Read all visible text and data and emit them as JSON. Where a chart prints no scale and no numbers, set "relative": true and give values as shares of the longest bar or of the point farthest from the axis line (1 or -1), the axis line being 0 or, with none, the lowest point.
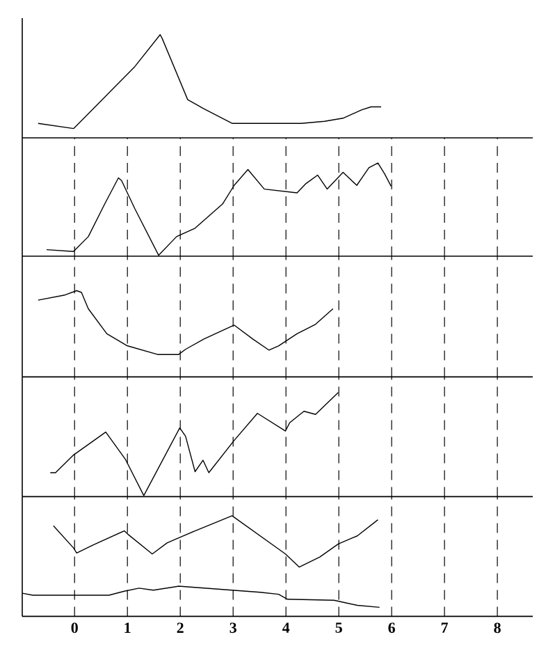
{
  "chart_data": [
    {
      "type": "line",
      "relative": true,
      "xlim": [
        -0.99,
        8.67
      ],
      "xticks": [
        0,
        1,
        2,
        3,
        4,
        5,
        6,
        7,
        8
      ],
      "grid": false,
      "tick_labels": false,
      "series": [
        {
          "color": "#000000",
          "x": [
            -0.69,
            -0.02,
            0.04,
            1.14,
            1.62,
            1.66,
            2.14,
            2.45,
            2.98,
            4.29,
            4.73,
            5.08,
            5.43,
            5.61,
            5.8
          ],
          "values": [
            0.14,
            0.09,
            0.12,
            0.69,
            1,
            0.96,
            0.37,
            0.28,
            0.14,
            0.14,
            0.16,
            0.19,
            0.27,
            0.3,
            0.3
          ]
        }
      ]
    },
    {
      "type": "line",
      "relative": true,
      "xlim": [
        -0.99,
        8.67
      ],
      "xticks": [
        0,
        1,
        2,
        3,
        4,
        5,
        6,
        7,
        8
      ],
      "grid": "x",
      "tick_labels": false,
      "series": [
        {
          "color": "#000000",
          "x": [
            -0.53,
            -0.02,
            0.26,
            0.57,
            0.83,
            0.89,
            1.14,
            1.59,
            1.93,
            2.28,
            2.8,
            3.02,
            3.28,
            3.59,
            4.21,
            4.38,
            4.6,
            4.78,
            5.08,
            5.34,
            5.57,
            5.74,
            5.87,
            5.99
          ],
          "values": [
            0.07,
            0.05,
            0.21,
            0.56,
            0.84,
            0.81,
            0.51,
            0.01,
            0.21,
            0.3,
            0.56,
            0.76,
            0.93,
            0.72,
            0.68,
            0.78,
            0.87,
            0.72,
            0.9,
            0.76,
            0.95,
            1,
            0.88,
            0.75
          ]
        }
      ]
    },
    {
      "type": "line",
      "relative": true,
      "xlim": [
        -0.99,
        8.67
      ],
      "xticks": [
        0,
        1,
        2,
        3,
        4,
        5,
        6,
        7,
        8
      ],
      "grid": "x",
      "tick_labels": false,
      "series": [
        {
          "color": "#000000",
          "x": [
            -0.69,
            -0.18,
            0.04,
            0.13,
            0.26,
            0.61,
            1.0,
            1.57,
            1.97,
            2.1,
            2.45,
            2.98,
            3.02,
            3.37,
            3.68,
            3.86,
            4.21,
            4.56,
            4.89
          ],
          "values": [
            0.89,
            0.95,
            1,
            0.98,
            0.79,
            0.5,
            0.36,
            0.26,
            0.26,
            0.32,
            0.44,
            0.59,
            0.6,
            0.44,
            0.31,
            0.36,
            0.5,
            0.61,
            0.79
          ]
        }
      ]
    },
    {
      "type": "line",
      "relative": true,
      "xlim": [
        -0.99,
        8.67
      ],
      "xticks": [
        0,
        1,
        2,
        3,
        4,
        5,
        6,
        7,
        8
      ],
      "grid": "x",
      "tick_labels": false,
      "series": [
        {
          "color": "#000000",
          "x": [
            -0.46,
            -0.36,
            -0.02,
            0.59,
            0.96,
            1.31,
            1.99,
            2.1,
            2.28,
            2.43,
            2.54,
            3.02,
            3.46,
            3.99,
            4.07,
            4.34,
            4.56,
            4.99
          ],
          "values": [
            0.23,
            0.23,
            0.4,
            0.62,
            0.36,
            0.01,
            0.66,
            0.58,
            0.24,
            0.35,
            0.23,
            0.54,
            0.8,
            0.63,
            0.71,
            0.82,
            0.79,
            1
          ]
        }
      ]
    },
    {
      "type": "line",
      "relative": true,
      "xlim": [
        -0.99,
        8.67
      ],
      "xticks": [
        0,
        1,
        2,
        3,
        4,
        5,
        6,
        7,
        8
      ],
      "grid": "x",
      "tick_labels": "x",
      "series": [
        {
          "color": "#000000",
          "x": [
            -0.4,
            -0.02,
            0.04,
            0.35,
            0.94,
            1.0,
            1.47,
            1.75,
            1.97,
            2.28,
            2.98,
            3.99,
            4.25,
            4.64,
            4.99,
            5.35,
            5.74
          ],
          "values": [
            0.9,
            0.68,
            0.63,
            0.71,
            0.85,
            0.82,
            0.62,
            0.73,
            0.78,
            0.85,
            1,
            0.62,
            0.49,
            0.59,
            0.72,
            0.8,
            0.96
          ]
        },
        {
          "color": "#000000",
          "x": [
            -0.99,
            -0.79,
            0.65,
            0.94,
            1.22,
            1.49,
            1.97,
            2.98,
            3.51,
            3.86,
            4.03,
            4.91,
            5.35,
            5.77
          ],
          "values": [
            0.23,
            0.21,
            0.21,
            0.25,
            0.28,
            0.26,
            0.3,
            0.26,
            0.24,
            0.22,
            0.17,
            0.16,
            0.11,
            0.09
          ]
        }
      ]
    }
  ]
}
